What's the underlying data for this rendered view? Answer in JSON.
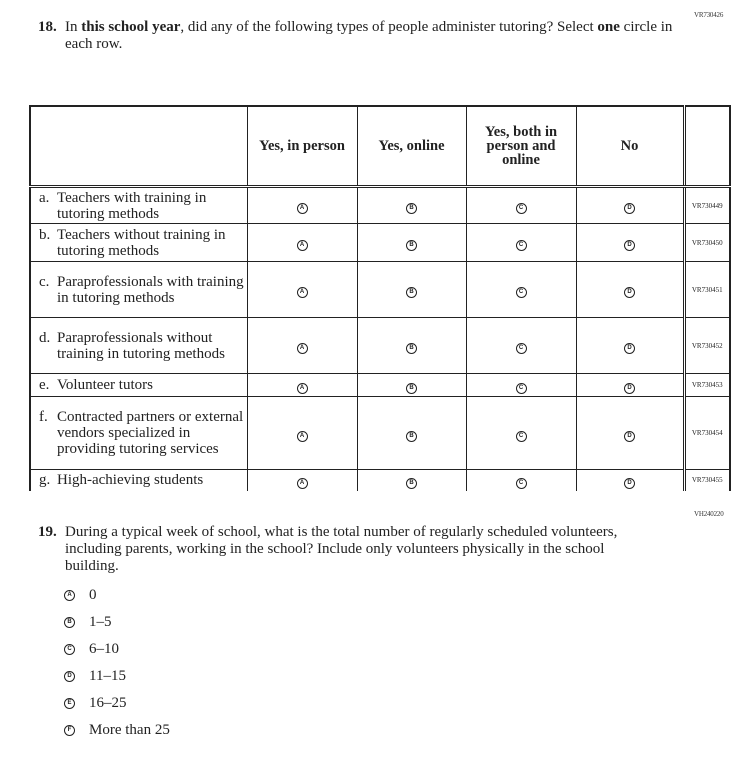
{
  "q18": {
    "code": "VR730426",
    "number": "18.",
    "text_pre": "In ",
    "text_bold1": "this school year",
    "text_mid": ", did any of the following types of people administer tutoring? Select ",
    "text_bold2": "one",
    "text_post": " circle in each row.",
    "columns": [
      "Yes, in person",
      "Yes, online",
      "Yes, both in person and online",
      "No"
    ],
    "bubbles": [
      "A",
      "B",
      "C",
      "D"
    ],
    "rows": [
      {
        "letter": "a.",
        "label": "Teachers with training in tutoring methods",
        "code": "VR730449"
      },
      {
        "letter": "b.",
        "label": "Teachers without training in tutoring methods",
        "code": "VR730450"
      },
      {
        "letter": "c.",
        "label": "Paraprofessionals with training in tutoring methods",
        "code": "VR730451"
      },
      {
        "letter": "d.",
        "label": "Paraprofessionals without training in tutoring methods",
        "code": "VR730452"
      },
      {
        "letter": "e.",
        "label": "Volunteer tutors",
        "code": "VR730453"
      },
      {
        "letter": "f.",
        "label": "Contracted partners or external vendors specialized in providing tutoring services",
        "code": "VR730454"
      },
      {
        "letter": "g.",
        "label": "High-achieving students",
        "code": "VR730455"
      }
    ]
  },
  "q19": {
    "code": "VH240220",
    "number": "19.",
    "text": "During a typical week of school, what is the total number of regularly scheduled volunteers, including parents, working in the school? Include only volunteers physically in the school building.",
    "options": [
      {
        "bubble": "A",
        "label": "0"
      },
      {
        "bubble": "B",
        "label": "1–5"
      },
      {
        "bubble": "C",
        "label": "6–10"
      },
      {
        "bubble": "D",
        "label": "11–15"
      },
      {
        "bubble": "E",
        "label": "16–25"
      },
      {
        "bubble": "F",
        "label": "More than 25"
      }
    ]
  }
}
